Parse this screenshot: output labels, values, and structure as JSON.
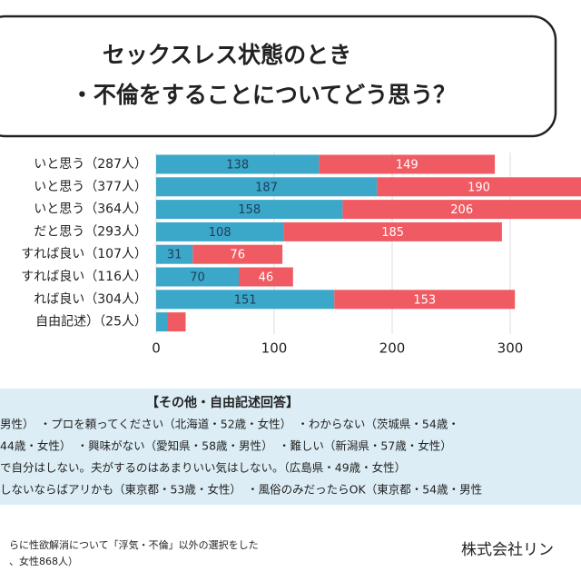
{
  "chart_data": {
    "type": "bar",
    "orientation": "horizontal",
    "stacked": true,
    "title": [
      "セックスレス状態のとき",
      "・不倫をすることについてどう思う？"
    ],
    "categories": [
      "いと思う（287人）",
      "いと思う（377人）",
      "いと思う（364人）",
      "だと思う（293人）",
      "すれば良い（107人）",
      "すれば良い（116人）",
      "れば良い（304人）",
      "自由記述）（25人）"
    ],
    "series": [
      {
        "color": "#3ba7c9",
        "label_color": "#1f3d5a",
        "values": [
          138,
          187,
          158,
          108,
          31,
          70,
          151,
          10
        ],
        "value_labels": [
          "138",
          "187",
          "158",
          "108",
          "31",
          "70",
          "151",
          null
        ]
      },
      {
        "color": "#f05b63",
        "label_color": "#ffffff",
        "values": [
          149,
          190,
          206,
          185,
          76,
          46,
          153,
          15
        ],
        "value_labels": [
          "149",
          "190",
          "206",
          "185",
          "76",
          "46",
          "153",
          null
        ]
      }
    ],
    "xlim": [
      0,
      360
    ],
    "xticks": [
      0,
      100,
      200,
      300
    ],
    "grid": true
  },
  "comments": {
    "heading": "【その他・自由記述回答】",
    "lines": [
      "男性）　・プロを頼ってください（北海道・52歳・女性）　・わからない（茨城県・54歳・",
      "44歳・女性）　・興味がない（愛知県・58歳・男性）　・難しい（新潟県・57歳・女性）",
      "で自分はしない。夫がするのはあまりいい気はしない。（広島県・49歳・女性）",
      "しないならばアリかも（東京都・53歳・女性）　・風俗のみだったらOK（東京都・54歳・男性"
    ]
  },
  "footnote": [
    "らに性欲解消について「浮気・不倫」以外の選択をした",
    "、女性868人）"
  ],
  "company": "株式会社リン"
}
